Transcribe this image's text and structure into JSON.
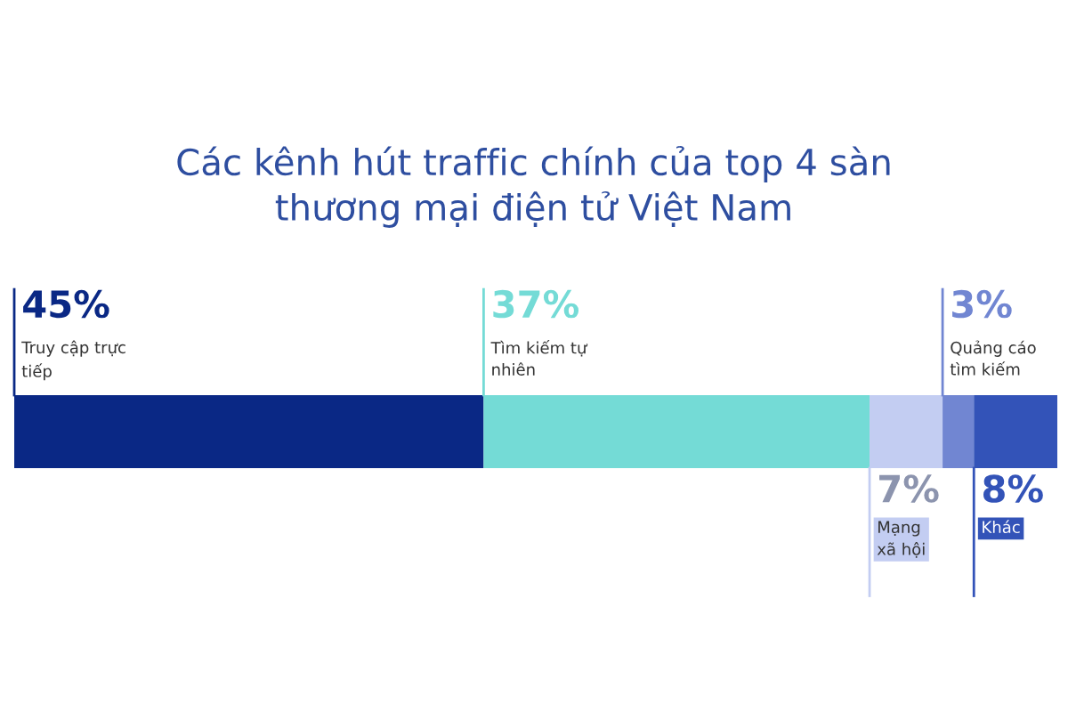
{
  "chart_data": {
    "type": "bar",
    "orientation": "horizontal",
    "stacked": true,
    "title": "Các kênh hút traffic chính của top 4 sàn\nthương mại điện tử Việt Nam",
    "categories": [
      null
    ],
    "series": [
      {
        "name": "Truy cập trực\ntiếp",
        "color": "#0a2885",
        "values": [
          45
        ],
        "value_labels": [
          "45%"
        ]
      },
      {
        "name": "Tìm kiếm tự\nnhiên",
        "color": "#74dbd6",
        "values": [
          37
        ],
        "value_labels": [
          "37%"
        ]
      },
      {
        "name": "Mạng\nxã hội",
        "color": "#c3cdf2",
        "values": [
          7
        ],
        "value_labels": [
          "7%"
        ]
      },
      {
        "name": "Quảng cáo\ntìm kiếm",
        "color": "#7186d2",
        "values": [
          3
        ],
        "value_labels": [
          "3%"
        ]
      },
      {
        "name": "Khác",
        "color": "#3353b8",
        "values": [
          8
        ],
        "value_labels": [
          "8%"
        ]
      }
    ],
    "legend": false
  }
}
